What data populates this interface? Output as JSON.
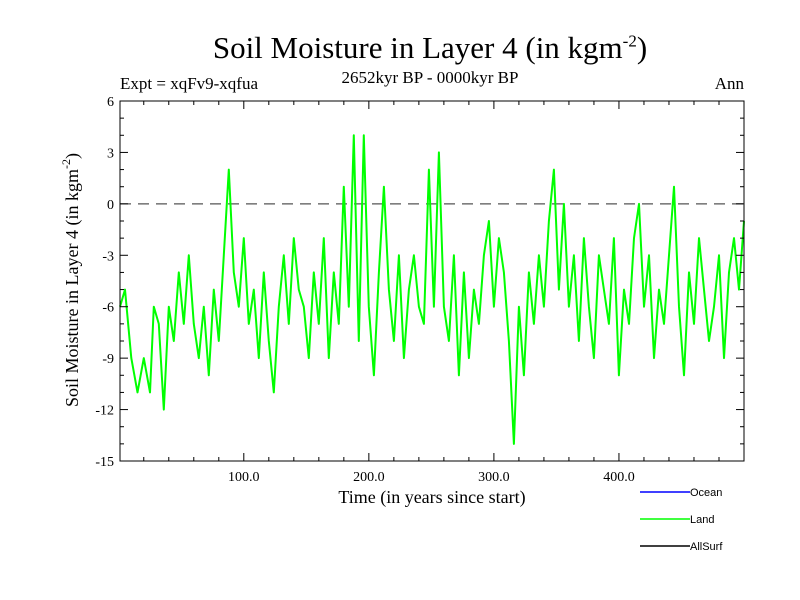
{
  "header": {
    "title_main": "Soil Moisture in Layer 4 (in kgm",
    "title_sup": "-2",
    "title_end": ")",
    "subtitle": "2652kyr BP - 0000kyr BP",
    "expt": "Expt = xqFv9-xqfua",
    "season": "Ann"
  },
  "chart_data": {
    "type": "line",
    "title": "Soil Moisture in Layer 4 (in kgm-2)",
    "xlabel": "Time (in years since start)",
    "ylabel": "Soil Moisture in Layer 4 (in kgm-2)",
    "xlim": [
      1,
      500
    ],
    "ylim": [
      -15,
      6
    ],
    "xticks": [
      100,
      200,
      300,
      400
    ],
    "xtick_labels": [
      "100.0",
      "200.0",
      "300.0",
      "400.0"
    ],
    "yticks": [
      6,
      3,
      0,
      -3,
      -6,
      -9,
      -12,
      -15
    ],
    "ytick_labels": [
      "6",
      "3",
      "0",
      "-3",
      "-6",
      "-9",
      "-12",
      "-15"
    ],
    "reference_line": 0,
    "legend": [
      {
        "name": "Ocean",
        "color": "#0000ff"
      },
      {
        "name": "Land",
        "color": "#00ff00"
      },
      {
        "name": "AllSurf",
        "color": "#000000"
      }
    ],
    "series": [
      {
        "name": "Land",
        "color": "#00ff00",
        "x": [
          1,
          5,
          10,
          15,
          20,
          25,
          28,
          32,
          36,
          40,
          44,
          48,
          52,
          56,
          60,
          64,
          68,
          72,
          76,
          80,
          84,
          88,
          92,
          96,
          100,
          104,
          108,
          112,
          116,
          120,
          124,
          128,
          132,
          136,
          140,
          144,
          148,
          152,
          156,
          160,
          164,
          168,
          172,
          176,
          180,
          184,
          188,
          192,
          196,
          200,
          204,
          208,
          212,
          216,
          220,
          224,
          228,
          232,
          236,
          240,
          244,
          248,
          252,
          256,
          260,
          264,
          268,
          272,
          276,
          280,
          284,
          288,
          292,
          296,
          300,
          304,
          308,
          312,
          316,
          320,
          324,
          328,
          332,
          336,
          340,
          344,
          348,
          352,
          356,
          360,
          364,
          368,
          372,
          376,
          380,
          384,
          388,
          392,
          396,
          400,
          404,
          408,
          412,
          416,
          420,
          424,
          428,
          432,
          436,
          440,
          444,
          448,
          452,
          456,
          460,
          464,
          468,
          472,
          476,
          480,
          484,
          488,
          492,
          496,
          500
        ],
        "values": [
          -6,
          -5,
          -9,
          -11,
          -9,
          -11,
          -6,
          -7,
          -12,
          -6,
          -8,
          -4,
          -7,
          -3,
          -7,
          -9,
          -6,
          -10,
          -5,
          -8,
          -3,
          2,
          -4,
          -6,
          -2,
          -7,
          -5,
          -9,
          -4,
          -8,
          -11,
          -6,
          -3,
          -7,
          -2,
          -5,
          -6,
          -9,
          -4,
          -7,
          -2,
          -9,
          -4,
          -7,
          1,
          -6,
          4,
          -8,
          4,
          -6,
          -10,
          -4,
          1,
          -5,
          -8,
          -3,
          -9,
          -5,
          -3,
          -6,
          -7,
          2,
          -6,
          3,
          -6,
          -8,
          -3,
          -10,
          -4,
          -9,
          -5,
          -7,
          -3,
          -1,
          -6,
          -2,
          -4,
          -8,
          -14,
          -6,
          -10,
          -4,
          -7,
          -3,
          -6,
          -1,
          2,
          -5,
          0,
          -6,
          -3,
          -8,
          -2,
          -6,
          -9,
          -3,
          -5,
          -7,
          -2,
          -10,
          -5,
          -7,
          -2,
          0,
          -6,
          -3,
          -9,
          -5,
          -7,
          -3,
          1,
          -6,
          -10,
          -4,
          -7,
          -2,
          -5,
          -8,
          -6,
          -3,
          -9,
          -4,
          -2,
          -5,
          -1
        ]
      }
    ]
  }
}
